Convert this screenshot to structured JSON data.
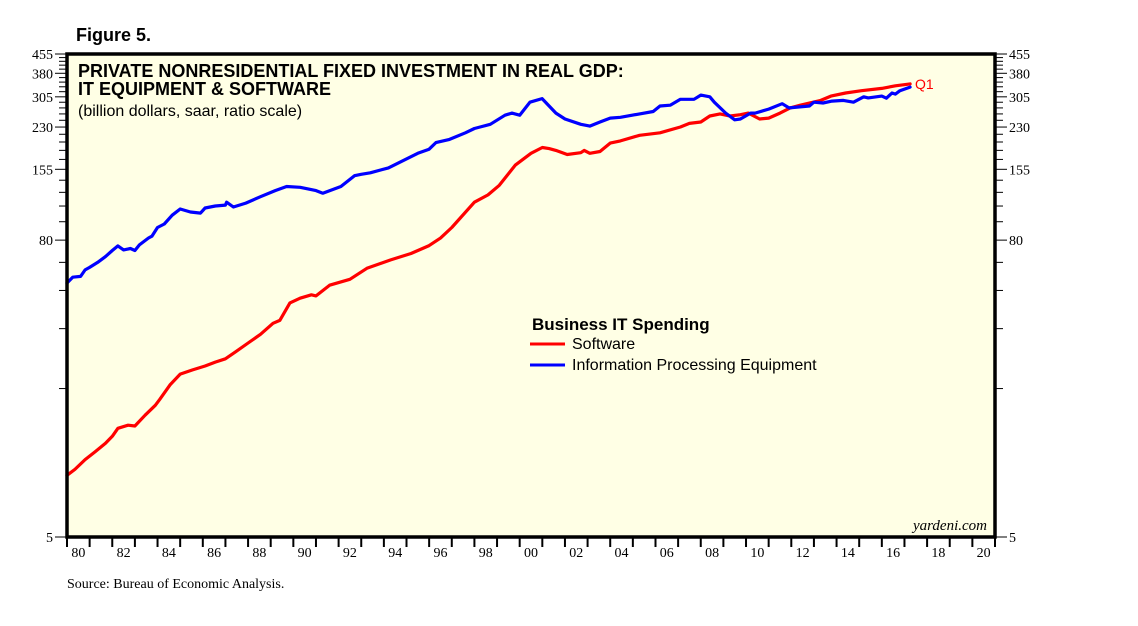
{
  "figure_label": "Figure 5.",
  "source": "Source: Bureau of Economic Analysis.",
  "chart_data": {
    "type": "line",
    "title": "PRIVATE NONRESIDENTIAL FIXED INVESTMENT IN REAL GDP:",
    "title_line2": "IT EQUIPMENT & SOFTWARE",
    "subtitle": "(billion dollars, saar, ratio scale)",
    "watermark": "yardeni.com",
    "xlabel": "",
    "ylabel": "",
    "y_scale": "log",
    "ylim": [
      5,
      455
    ],
    "xlim": [
      1980,
      2021
    ],
    "y_major_ticks": [
      5,
      80,
      155,
      230,
      305,
      380,
      455
    ],
    "y_minor_step": 15,
    "y_tick_labels": [
      "5",
      "80",
      "155",
      "230",
      "305",
      "380",
      "455"
    ],
    "x_tick_labels": [
      "80",
      "82",
      "84",
      "86",
      "88",
      "90",
      "92",
      "94",
      "96",
      "98",
      "00",
      "02",
      "04",
      "06",
      "08",
      "10",
      "12",
      "14",
      "16",
      "18",
      "20"
    ],
    "x_tick_years": [
      1980,
      1982,
      1984,
      1986,
      1988,
      1990,
      1992,
      1994,
      1996,
      1998,
      2000,
      2002,
      2004,
      2006,
      2008,
      2010,
      2012,
      2014,
      2016,
      2018,
      2020
    ],
    "grid": false,
    "legend": {
      "title": "Business IT Spending",
      "placement": "center-right",
      "entries": [
        "Software",
        "Information Processing Equipment"
      ]
    },
    "end_annotation": "Q1",
    "series": [
      {
        "name": "Software",
        "color": "#ff0000",
        "points": [
          [
            1980.0,
            8.9
          ],
          [
            1980.35,
            9.4
          ],
          [
            1980.8,
            10.3
          ],
          [
            1981.25,
            11.1
          ],
          [
            1981.7,
            12.0
          ],
          [
            1982.0,
            12.8
          ],
          [
            1982.25,
            13.8
          ],
          [
            1982.7,
            14.2
          ],
          [
            1983.0,
            14.1
          ],
          [
            1983.45,
            15.6
          ],
          [
            1983.9,
            17.1
          ],
          [
            1984.1,
            18.1
          ],
          [
            1984.55,
            20.7
          ],
          [
            1985.0,
            22.9
          ],
          [
            1985.55,
            23.8
          ],
          [
            1986.1,
            24.7
          ],
          [
            1986.55,
            25.6
          ],
          [
            1987.0,
            26.4
          ],
          [
            1987.45,
            28.2
          ],
          [
            1988.0,
            30.6
          ],
          [
            1988.55,
            33.2
          ],
          [
            1989.1,
            36.8
          ],
          [
            1989.4,
            37.8
          ],
          [
            1989.85,
            44.5
          ],
          [
            1990.3,
            46.5
          ],
          [
            1990.8,
            48.0
          ],
          [
            1991.0,
            47.5
          ],
          [
            1991.6,
            52.5
          ],
          [
            1992.5,
            55.5
          ],
          [
            1993.25,
            61.5
          ],
          [
            1994.3,
            66.5
          ],
          [
            1995.2,
            70.6
          ],
          [
            1996.0,
            76.0
          ],
          [
            1996.5,
            81.5
          ],
          [
            1997.0,
            90.0
          ],
          [
            1998.0,
            114.0
          ],
          [
            1998.6,
            122.0
          ],
          [
            1999.1,
            133.5
          ],
          [
            1999.8,
            161.0
          ],
          [
            2000.5,
            180.0
          ],
          [
            2001.0,
            190.0
          ],
          [
            2001.3,
            188.0
          ],
          [
            2001.6,
            185.0
          ],
          [
            2002.1,
            178.0
          ],
          [
            2002.7,
            181.0
          ],
          [
            2002.85,
            185.0
          ],
          [
            2003.1,
            180.0
          ],
          [
            2003.55,
            183.0
          ],
          [
            2004.0,
            198.0
          ],
          [
            2004.45,
            202.0
          ],
          [
            2005.3,
            213.0
          ],
          [
            2006.2,
            218.0
          ],
          [
            2007.1,
            230.0
          ],
          [
            2007.5,
            238.0
          ],
          [
            2008.0,
            241.0
          ],
          [
            2008.4,
            255.0
          ],
          [
            2008.85,
            260.0
          ],
          [
            2009.3,
            255.0
          ],
          [
            2009.75,
            258.0
          ],
          [
            2010.1,
            262.0
          ],
          [
            2010.6,
            248.0
          ],
          [
            2011.0,
            250.0
          ],
          [
            2011.5,
            262.0
          ],
          [
            2011.95,
            275.0
          ],
          [
            2012.4,
            282.0
          ],
          [
            2012.8,
            288.0
          ],
          [
            2013.3,
            295.0
          ],
          [
            2013.75,
            307.0
          ],
          [
            2014.4,
            316.0
          ],
          [
            2015.1,
            323.0
          ],
          [
            2016.0,
            330.0
          ],
          [
            2016.6,
            338.0
          ],
          [
            2017.25,
            344.0
          ]
        ]
      },
      {
        "name": "Information Processing Equipment",
        "color": "#0000ff",
        "points": [
          [
            1980.0,
            53.6
          ],
          [
            1980.25,
            56.6
          ],
          [
            1980.6,
            57.0
          ],
          [
            1980.8,
            60.6
          ],
          [
            1981.0,
            62.0
          ],
          [
            1981.35,
            65.0
          ],
          [
            1981.7,
            68.6
          ],
          [
            1982.0,
            72.6
          ],
          [
            1982.25,
            75.8
          ],
          [
            1982.5,
            73.0
          ],
          [
            1982.8,
            74.0
          ],
          [
            1983.0,
            72.6
          ],
          [
            1983.2,
            76.5
          ],
          [
            1983.6,
            81.6
          ],
          [
            1983.75,
            83.0
          ],
          [
            1984.0,
            90.0
          ],
          [
            1984.3,
            93.0
          ],
          [
            1984.65,
            101.0
          ],
          [
            1985.0,
            107.0
          ],
          [
            1985.45,
            104.0
          ],
          [
            1985.9,
            103.0
          ],
          [
            1986.1,
            108.0
          ],
          [
            1986.55,
            110.0
          ],
          [
            1987.0,
            111.0
          ],
          [
            1987.05,
            114.0
          ],
          [
            1987.35,
            109.0
          ],
          [
            1987.9,
            113.0
          ],
          [
            1988.55,
            120.0
          ],
          [
            1989.2,
            127.0
          ],
          [
            1989.7,
            132.0
          ],
          [
            1990.3,
            131.0
          ],
          [
            1991.0,
            127.0
          ],
          [
            1991.3,
            124.0
          ],
          [
            1992.1,
            132.0
          ],
          [
            1992.7,
            146.0
          ],
          [
            1993.0,
            148.0
          ],
          [
            1993.4,
            150.0
          ],
          [
            1994.2,
            157.0
          ],
          [
            1995.5,
            180.0
          ],
          [
            1996.0,
            187.0
          ],
          [
            1996.3,
            199.0
          ],
          [
            1996.9,
            205.0
          ],
          [
            1997.6,
            218.0
          ],
          [
            1998.0,
            227.0
          ],
          [
            1998.25,
            230.0
          ],
          [
            1998.7,
            236.0
          ],
          [
            1999.35,
            257.0
          ],
          [
            1999.65,
            262.0
          ],
          [
            2000.0,
            257.0
          ],
          [
            2000.45,
            290.0
          ],
          [
            2000.99,
            300.0
          ],
          [
            2001.6,
            262.0
          ],
          [
            2002.0,
            248.0
          ],
          [
            2002.7,
            236.0
          ],
          [
            2003.1,
            232.0
          ],
          [
            2003.55,
            241.0
          ],
          [
            2004.0,
            250.0
          ],
          [
            2004.45,
            252.0
          ],
          [
            2005.3,
            260.0
          ],
          [
            2005.9,
            266.0
          ],
          [
            2006.2,
            280.0
          ],
          [
            2006.65,
            282.0
          ],
          [
            2007.1,
            298.0
          ],
          [
            2007.7,
            298.0
          ],
          [
            2008.0,
            310.0
          ],
          [
            2008.4,
            305.0
          ],
          [
            2008.6,
            290.0
          ],
          [
            2009.1,
            262.0
          ],
          [
            2009.5,
            246.0
          ],
          [
            2009.75,
            248.0
          ],
          [
            2010.2,
            262.0
          ],
          [
            2010.4,
            262.0
          ],
          [
            2010.4,
            262.0
          ],
          [
            2011.0,
            272.0
          ],
          [
            2011.6,
            286.0
          ],
          [
            2011.9,
            275.0
          ],
          [
            2012.8,
            280.0
          ],
          [
            2013.0,
            290.0
          ],
          [
            2013.4,
            288.0
          ],
          [
            2013.8,
            293.0
          ],
          [
            2014.3,
            295.0
          ],
          [
            2014.75,
            290.0
          ],
          [
            2015.2,
            305.0
          ],
          [
            2015.4,
            302.0
          ],
          [
            2016.0,
            307.0
          ],
          [
            2016.2,
            301.0
          ],
          [
            2016.45,
            316.0
          ],
          [
            2016.6,
            313.0
          ],
          [
            2016.8,
            323.0
          ],
          [
            2017.25,
            334.0
          ]
        ]
      }
    ]
  }
}
